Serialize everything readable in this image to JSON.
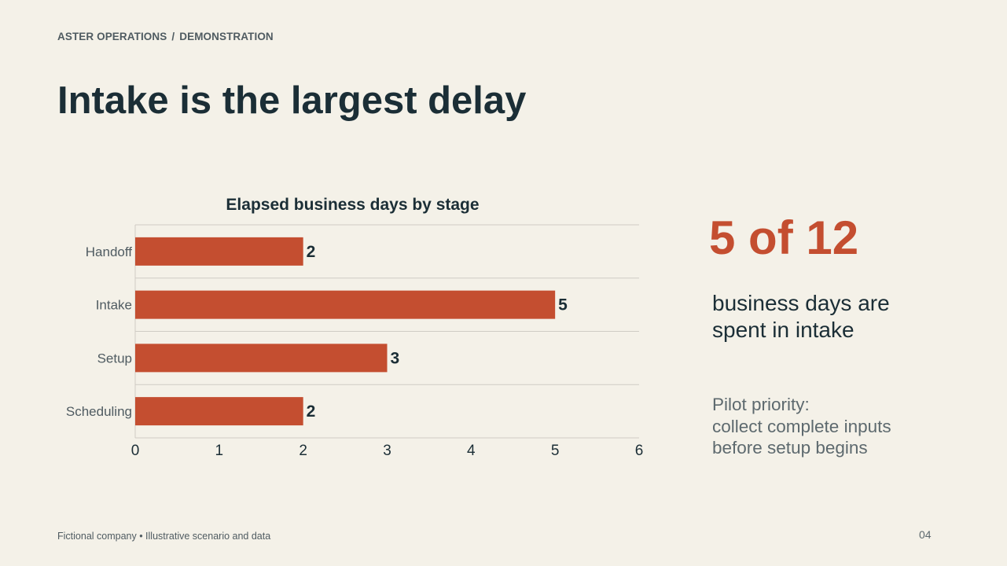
{
  "header": {
    "company": "ASTER OPERATIONS",
    "separator": "/",
    "section": "DEMONSTRATION",
    "title": "Intake is the largest delay"
  },
  "chart_data": {
    "type": "bar",
    "orientation": "horizontal",
    "title": "Elapsed business days by stage",
    "categories": [
      "Handoff",
      "Intake",
      "Setup",
      "Scheduling"
    ],
    "values": [
      2,
      5,
      3,
      2
    ],
    "xlim": [
      0,
      6
    ],
    "xticks": [
      "0",
      "1",
      "2",
      "3",
      "4",
      "5",
      "6"
    ],
    "xlabel": "",
    "ylabel": "",
    "grid": "horizontal separators",
    "bar_color": "#c44e30",
    "data_labels": true
  },
  "kpi": {
    "value": "5 of 12",
    "line1": "business days are",
    "line2": "spent in intake",
    "color": "#c44e30"
  },
  "note": {
    "line1": "Pilot priority:",
    "line2": "collect complete inputs",
    "line3": "before setup begins"
  },
  "footer": {
    "text": "Fictional company • Illustrative scenario and data",
    "page": "04"
  }
}
